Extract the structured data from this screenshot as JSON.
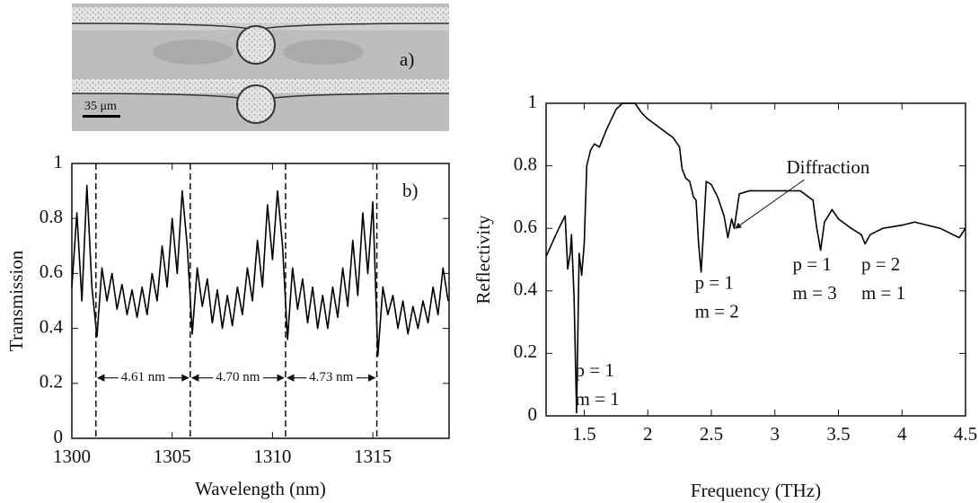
{
  "image_panel": {
    "label": "a)",
    "scale_bar": "35 μm"
  },
  "chart_data": [
    {
      "type": "line",
      "panel_label": "b)",
      "xlabel": "Wavelength (nm)",
      "ylabel": "Transmission",
      "color": "#000000",
      "x": [
        1300,
        1300.25,
        1300.5,
        1300.75,
        1301,
        1301.25,
        1301.5,
        1301.75,
        1302,
        1302.25,
        1302.5,
        1302.75,
        1303,
        1303.25,
        1303.5,
        1303.75,
        1304,
        1304.25,
        1304.5,
        1304.75,
        1305,
        1305.25,
        1305.5,
        1305.75,
        1306,
        1306.25,
        1306.5,
        1306.75,
        1307,
        1307.25,
        1307.5,
        1307.75,
        1308,
        1308.25,
        1308.5,
        1308.75,
        1309,
        1309.25,
        1309.5,
        1309.75,
        1310,
        1310.25,
        1310.5,
        1310.75,
        1311,
        1311.25,
        1311.5,
        1311.75,
        1312,
        1312.25,
        1312.5,
        1312.75,
        1313,
        1313.25,
        1313.5,
        1313.75,
        1314,
        1314.25,
        1314.5,
        1314.75,
        1315,
        1315.25,
        1315.5,
        1315.75,
        1316,
        1316.25,
        1316.5,
        1316.75,
        1317,
        1317.25,
        1317.5,
        1317.75,
        1318,
        1318.25,
        1318.5,
        1318.75
      ],
      "values": [
        0.55,
        0.82,
        0.5,
        0.92,
        0.55,
        0.37,
        0.62,
        0.5,
        0.6,
        0.47,
        0.56,
        0.45,
        0.54,
        0.44,
        0.55,
        0.45,
        0.6,
        0.5,
        0.7,
        0.55,
        0.8,
        0.6,
        0.9,
        0.7,
        0.38,
        0.62,
        0.48,
        0.58,
        0.42,
        0.54,
        0.4,
        0.52,
        0.41,
        0.55,
        0.45,
        0.62,
        0.5,
        0.72,
        0.55,
        0.85,
        0.65,
        0.9,
        0.7,
        0.36,
        0.62,
        0.47,
        0.58,
        0.42,
        0.55,
        0.4,
        0.52,
        0.4,
        0.55,
        0.44,
        0.62,
        0.48,
        0.72,
        0.52,
        0.82,
        0.6,
        0.86,
        0.3,
        0.55,
        0.45,
        0.52,
        0.4,
        0.5,
        0.38,
        0.48,
        0.4,
        0.5,
        0.42,
        0.55,
        0.45,
        0.62,
        0.5
      ],
      "xlim": [
        1300,
        1318.8
      ],
      "ylim": [
        0,
        1
      ],
      "xticks": [
        1300,
        1305,
        1310,
        1315
      ],
      "yticks": [
        0,
        0.2,
        0.4,
        0.6,
        0.8,
        1
      ],
      "vlines": [
        1301.2,
        1305.9,
        1310.65,
        1315.2
      ],
      "spacing_labels": [
        "4.61 nm",
        "4.70 nm",
        "4.73 nm"
      ],
      "spacing_y": 0.22
    },
    {
      "type": "line",
      "xlabel": "Frequency (THz)",
      "ylabel": "Reflectivity",
      "color": "#000000",
      "x": [
        1.2,
        1.3,
        1.35,
        1.37,
        1.39,
        1.4,
        1.42,
        1.44,
        1.46,
        1.48,
        1.5,
        1.52,
        1.55,
        1.58,
        1.62,
        1.68,
        1.75,
        1.8,
        1.9,
        1.95,
        2.0,
        2.1,
        2.2,
        2.25,
        2.27,
        2.3,
        2.33,
        2.36,
        2.38,
        2.4,
        2.42,
        2.44,
        2.46,
        2.5,
        2.55,
        2.6,
        2.63,
        2.66,
        2.68,
        2.72,
        2.8,
        3.0,
        3.2,
        3.3,
        3.33,
        3.36,
        3.39,
        3.45,
        3.5,
        3.6,
        3.68,
        3.71,
        3.75,
        3.85,
        4.0,
        4.1,
        4.2,
        4.3,
        4.4,
        4.45,
        4.5
      ],
      "values": [
        0.51,
        0.6,
        0.64,
        0.47,
        0.52,
        0.58,
        0.38,
        0.01,
        0.52,
        0.45,
        0.55,
        0.8,
        0.85,
        0.87,
        0.86,
        0.92,
        0.98,
        1.0,
        1.0,
        0.97,
        0.95,
        0.92,
        0.89,
        0.86,
        0.79,
        0.76,
        0.75,
        0.7,
        0.69,
        0.55,
        0.46,
        0.6,
        0.75,
        0.74,
        0.7,
        0.64,
        0.57,
        0.63,
        0.6,
        0.71,
        0.72,
        0.72,
        0.72,
        0.69,
        0.6,
        0.53,
        0.62,
        0.66,
        0.63,
        0.6,
        0.58,
        0.55,
        0.58,
        0.6,
        0.61,
        0.62,
        0.61,
        0.6,
        0.58,
        0.57,
        0.6
      ],
      "xlim": [
        1.2,
        4.5
      ],
      "ylim": [
        0,
        1
      ],
      "xticks": [
        1.5,
        2,
        2.5,
        3,
        3.5,
        4,
        4.5
      ],
      "yticks": [
        0,
        0.2,
        0.4,
        0.6,
        0.8,
        1
      ],
      "annotations": [
        {
          "lines": [
            "p = 1",
            "m = 1"
          ],
          "x": 1.43,
          "y": 0.14
        },
        {
          "lines": [
            "p = 1",
            "m = 2"
          ],
          "x": 2.37,
          "y": 0.42
        },
        {
          "lines": [
            "p = 1",
            "m = 3"
          ],
          "x": 3.14,
          "y": 0.48
        },
        {
          "lines": [
            "p = 2",
            "m = 1"
          ],
          "x": 3.68,
          "y": 0.48
        },
        {
          "lines": [
            "Diffraction"
          ],
          "x": 3.09,
          "y": 0.79,
          "arrow_to": [
            2.69,
            0.6
          ]
        }
      ]
    }
  ]
}
